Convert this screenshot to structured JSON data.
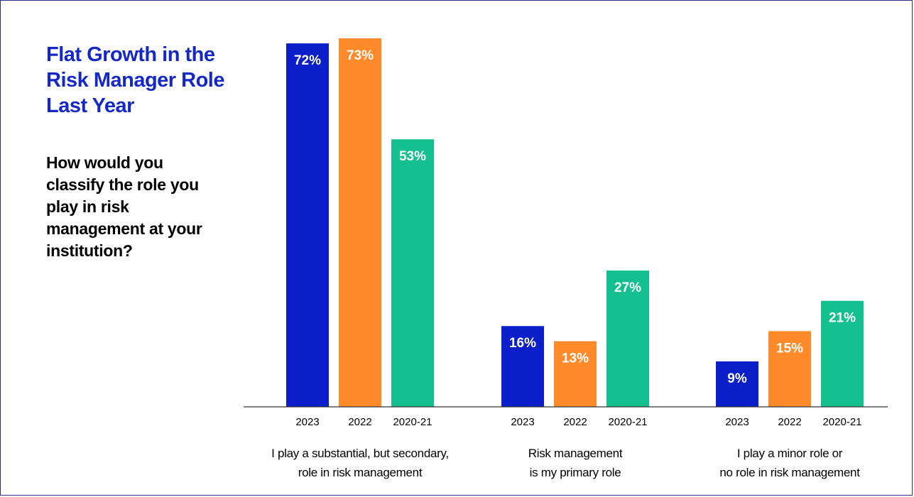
{
  "title": "Flat Growth in the Risk Manager Role Last Year",
  "question": "How would you classify the role you play in risk management at your institution?",
  "colors": {
    "2023": "#0a1fc9",
    "2022": "#ff8a2a",
    "2020-21": "#14c08f",
    "title": "#1428c8",
    "axis": "#333333"
  },
  "chart_data": {
    "type": "bar",
    "categories": [
      "I play a substantial, but secondary, role in risk management",
      "Risk management is my primary role",
      "I play a minor role or no role in risk management"
    ],
    "category_lines": [
      [
        "I play a substantial, but secondary,",
        "role in risk management"
      ],
      [
        "Risk management",
        "is my primary role"
      ],
      [
        "I play a minor role or",
        "no role in risk management"
      ]
    ],
    "series": [
      {
        "name": "2023",
        "values": [
          72,
          16,
          9
        ],
        "labels": [
          "72%",
          "16%",
          "9%"
        ]
      },
      {
        "name": "2022",
        "values": [
          73,
          13,
          15
        ],
        "labels": [
          "73%",
          "13%",
          "15%"
        ]
      },
      {
        "name": "2020-21",
        "values": [
          53,
          27,
          21
        ],
        "labels": [
          "53%",
          "27%",
          "21%"
        ]
      }
    ],
    "ylim": [
      0,
      73
    ],
    "grid": false,
    "legend": "none (series names shown as tick labels under each bar)"
  }
}
